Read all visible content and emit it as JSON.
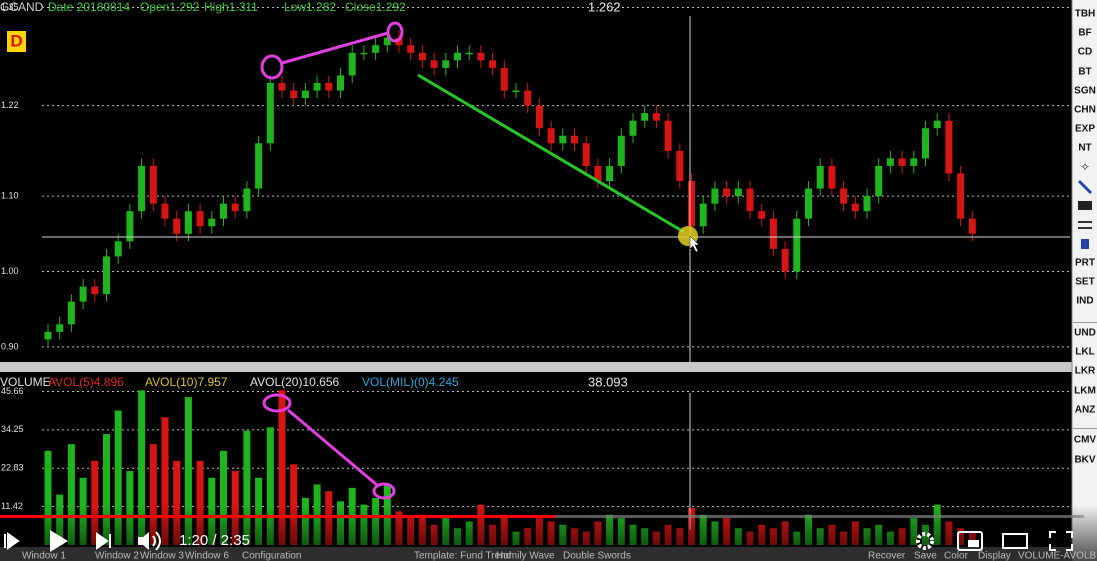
{
  "header": {
    "symbol": "GCAND",
    "date": "Date 20180814",
    "open": "Open1.292",
    "high": "High1.311",
    "low": "Low1.282",
    "close": "Close1.292",
    "cursor_value": "1.262",
    "period": "D"
  },
  "volume_header": {
    "title": "VOLUME",
    "avol5": "AVOL(5)4.896",
    "avol10": "AVOL(10)7.957",
    "avol20": "AVOL(20)10.656",
    "vol_mil": "VOL(MIL)(0)4.245",
    "cursor_value": "38.093"
  },
  "chart_data": [
    {
      "type": "candlestick",
      "up_color": "#1fb51f",
      "down_color": "#d81414",
      "grid": true,
      "ylim": [
        0.88,
        1.36
      ],
      "yticks": [
        {
          "value": 0.9,
          "label": "0.90"
        },
        {
          "value": 1,
          "label": "1.00"
        },
        {
          "value": 1.1,
          "label": "1.10"
        },
        1.22,
        1.35
      ],
      "open": [
        0.91,
        0.92,
        0.93,
        0.96,
        0.98,
        0.97,
        1.02,
        1.04,
        1.08,
        1.14,
        1.09,
        1.07,
        1.05,
        1.08,
        1.06,
        1.07,
        1.09,
        1.08,
        1.11,
        1.17,
        1.25,
        1.24,
        1.23,
        1.24,
        1.25,
        1.24,
        1.26,
        1.29,
        1.29,
        1.3,
        1.31,
        1.3,
        1.29,
        1.28,
        1.27,
        1.28,
        1.29,
        1.29,
        1.28,
        1.27,
        1.24,
        1.24,
        1.22,
        1.19,
        1.17,
        1.18,
        1.17,
        1.14,
        1.12,
        1.14,
        1.18,
        1.2,
        1.21,
        1.2,
        1.16,
        1.12,
        1.06,
        1.09,
        1.11,
        1.1,
        1.11,
        1.08,
        1.07,
        1.03,
        1.0,
        1.07,
        1.11,
        1.14,
        1.11,
        1.09,
        1.08,
        1.1,
        1.14,
        1.15,
        1.14,
        1.15,
        1.19,
        1.2,
        1.13,
        1.07
      ],
      "high": [
        0.93,
        0.94,
        0.97,
        0.99,
        0.99,
        1.03,
        1.05,
        1.09,
        1.15,
        1.15,
        1.1,
        1.08,
        1.09,
        1.09,
        1.08,
        1.1,
        1.1,
        1.12,
        1.18,
        1.26,
        1.26,
        1.25,
        1.25,
        1.26,
        1.26,
        1.27,
        1.3,
        1.3,
        1.31,
        1.32,
        1.32,
        1.31,
        1.3,
        1.29,
        1.29,
        1.3,
        1.3,
        1.3,
        1.29,
        1.28,
        1.25,
        1.25,
        1.23,
        1.2,
        1.19,
        1.19,
        1.18,
        1.15,
        1.15,
        1.19,
        1.21,
        1.22,
        1.22,
        1.21,
        1.17,
        1.13,
        1.1,
        1.12,
        1.12,
        1.12,
        1.12,
        1.09,
        1.08,
        1.04,
        1.08,
        1.12,
        1.15,
        1.15,
        1.12,
        1.1,
        1.11,
        1.15,
        1.16,
        1.16,
        1.16,
        1.2,
        1.21,
        1.21,
        1.14,
        1.08
      ],
      "low": [
        0.9,
        0.91,
        0.92,
        0.95,
        0.96,
        0.96,
        1.01,
        1.03,
        1.07,
        1.08,
        1.06,
        1.04,
        1.04,
        1.05,
        1.05,
        1.06,
        1.07,
        1.07,
        1.1,
        1.16,
        1.23,
        1.22,
        1.22,
        1.23,
        1.23,
        1.23,
        1.25,
        1.28,
        1.28,
        1.29,
        1.29,
        1.28,
        1.27,
        1.26,
        1.26,
        1.27,
        1.28,
        1.27,
        1.26,
        1.23,
        1.23,
        1.21,
        1.18,
        1.16,
        1.16,
        1.16,
        1.13,
        1.11,
        1.11,
        1.13,
        1.17,
        1.19,
        1.19,
        1.15,
        1.11,
        1.05,
        1.05,
        1.08,
        1.09,
        1.09,
        1.07,
        1.06,
        1.02,
        0.99,
        0.99,
        1.06,
        1.1,
        1.1,
        1.08,
        1.07,
        1.07,
        1.09,
        1.13,
        1.13,
        1.13,
        1.14,
        1.18,
        1.12,
        1.06,
        1.04
      ],
      "close": [
        0.92,
        0.93,
        0.96,
        0.98,
        0.97,
        1.02,
        1.04,
        1.08,
        1.14,
        1.09,
        1.07,
        1.05,
        1.08,
        1.06,
        1.07,
        1.09,
        1.08,
        1.11,
        1.17,
        1.25,
        1.24,
        1.23,
        1.24,
        1.25,
        1.24,
        1.26,
        1.29,
        1.29,
        1.3,
        1.31,
        1.3,
        1.29,
        1.28,
        1.27,
        1.28,
        1.29,
        1.29,
        1.28,
        1.27,
        1.24,
        1.24,
        1.22,
        1.19,
        1.17,
        1.18,
        1.17,
        1.14,
        1.12,
        1.14,
        1.18,
        1.2,
        1.21,
        1.2,
        1.16,
        1.12,
        1.06,
        1.09,
        1.11,
        1.1,
        1.11,
        1.08,
        1.07,
        1.03,
        1.0,
        1.07,
        1.11,
        1.14,
        1.11,
        1.09,
        1.08,
        1.1,
        1.14,
        1.15,
        1.14,
        1.15,
        1.19,
        1.2,
        1.13,
        1.07,
        1.05
      ]
    },
    {
      "type": "bar",
      "grid": true,
      "ylim": [
        0,
        47
      ],
      "yticks": [
        11.42,
        22.83,
        34.25,
        45.66
      ],
      "values": [
        28,
        15,
        30,
        20,
        25,
        33,
        40,
        22,
        46,
        30,
        38,
        25,
        44,
        25,
        20,
        28,
        22,
        34,
        20,
        35,
        46,
        24,
        14,
        18,
        16,
        13,
        17,
        12,
        14,
        18,
        10,
        8,
        9,
        6,
        8,
        5,
        7,
        12,
        6,
        9,
        4,
        5,
        8,
        7,
        6,
        5,
        4,
        7,
        9,
        8,
        6,
        5,
        4,
        6,
        5,
        11,
        9,
        7,
        8,
        5,
        4,
        6,
        5,
        7,
        4,
        9,
        5,
        6,
        4,
        7,
        5,
        6,
        4,
        5,
        8,
        6,
        12,
        7,
        5,
        4
      ]
    }
  ],
  "toolbar": [
    "TBH",
    "BF",
    "CD",
    "BT",
    "SGN",
    "CHN",
    "EXP",
    "NT",
    "PRT",
    "SET",
    "IND",
    "UND",
    "LKL",
    "LKR",
    "LKM",
    "ANZ",
    "CMV",
    "BKV"
  ],
  "player": {
    "time": "1:20 / 2:35"
  },
  "taskbar": [
    "Window 1",
    "Window 2",
    "Window 3",
    "Window 6",
    "Configuration",
    "Template: Fund Trend",
    "Homily Wave",
    "Double Swords",
    "Recover",
    "Save",
    "Color",
    "Display",
    "VOLUME-AVOLB"
  ]
}
